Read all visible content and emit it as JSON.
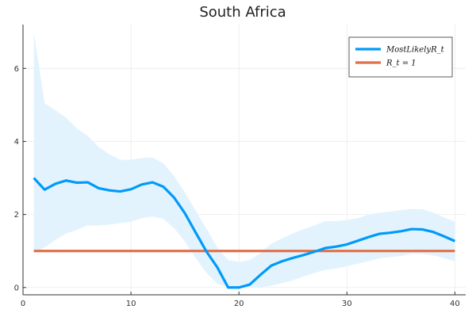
{
  "chart_data": {
    "type": "line",
    "title": "South Africa",
    "xlabel": "",
    "ylabel": "",
    "xlim": [
      0,
      41
    ],
    "ylim": [
      -0.2,
      7.2
    ],
    "xticks": [
      0,
      10,
      20,
      30,
      40
    ],
    "yticks": [
      0,
      2,
      4,
      6
    ],
    "grid": true,
    "legend_position": "top-right",
    "x": [
      1,
      2,
      3,
      4,
      5,
      6,
      7,
      8,
      9,
      10,
      11,
      12,
      13,
      14,
      15,
      16,
      17,
      18,
      19,
      20,
      21,
      22,
      23,
      24,
      25,
      26,
      27,
      28,
      29,
      30,
      31,
      32,
      33,
      34,
      35,
      36,
      37,
      38,
      39,
      40
    ],
    "series": [
      {
        "name": "MostLikelyRt",
        "legend_label": "MostLikelyR_t",
        "color": "#009af9",
        "values": [
          3.0,
          2.68,
          2.84,
          2.93,
          2.87,
          2.88,
          2.72,
          2.66,
          2.63,
          2.69,
          2.82,
          2.88,
          2.76,
          2.46,
          2.03,
          1.5,
          0.98,
          0.55,
          0.0,
          0.0,
          0.08,
          0.35,
          0.6,
          0.72,
          0.81,
          0.89,
          0.98,
          1.08,
          1.12,
          1.18,
          1.28,
          1.38,
          1.47,
          1.5,
          1.54,
          1.6,
          1.59,
          1.52,
          1.4,
          1.27
        ],
        "lower": [
          0.95,
          1.1,
          1.3,
          1.48,
          1.58,
          1.7,
          1.7,
          1.72,
          1.76,
          1.8,
          1.9,
          1.94,
          1.88,
          1.62,
          1.25,
          0.8,
          0.4,
          0.1,
          0.0,
          0.0,
          0.0,
          0.0,
          0.05,
          0.12,
          0.2,
          0.3,
          0.4,
          0.48,
          0.52,
          0.58,
          0.65,
          0.72,
          0.8,
          0.83,
          0.86,
          0.92,
          0.92,
          0.88,
          0.8,
          0.72
        ],
        "upper": [
          7.0,
          5.05,
          4.85,
          4.65,
          4.35,
          4.15,
          3.85,
          3.65,
          3.5,
          3.5,
          3.55,
          3.56,
          3.4,
          3.05,
          2.6,
          2.1,
          1.6,
          1.1,
          0.75,
          0.7,
          0.75,
          0.95,
          1.2,
          1.35,
          1.48,
          1.6,
          1.7,
          1.82,
          1.82,
          1.85,
          1.9,
          2.0,
          2.05,
          2.08,
          2.12,
          2.15,
          2.14,
          2.05,
          1.92,
          1.8
        ]
      },
      {
        "name": "Rt = 1",
        "legend_label": "R_t = 1",
        "color": "#e26f46",
        "values": [
          1,
          1,
          1,
          1,
          1,
          1,
          1,
          1,
          1,
          1,
          1,
          1,
          1,
          1,
          1,
          1,
          1,
          1,
          1,
          1,
          1,
          1,
          1,
          1,
          1,
          1,
          1,
          1,
          1,
          1,
          1,
          1,
          1,
          1,
          1,
          1,
          1,
          1,
          1,
          1
        ]
      }
    ]
  },
  "colors": {
    "band": "#e3f3fe",
    "grid": "#ebebeb",
    "axis": "#333333"
  }
}
